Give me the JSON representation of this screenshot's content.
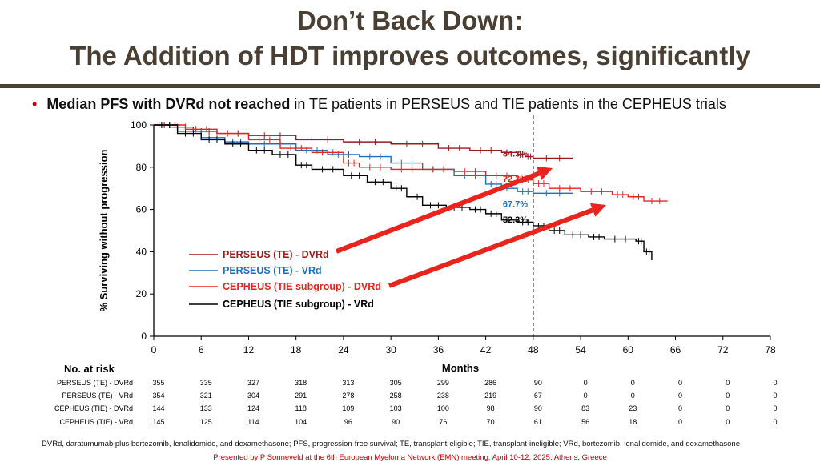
{
  "slide": {
    "title_line1": "Don’t Back Down:",
    "title_line2": "The Addition of HDT improves outcomes, significantly",
    "bullet_bold": "Median PFS with DVRd not reached",
    "bullet_rest": " in TE patients in PERSEUS and TIE patients in the CEPHEUS trials",
    "footnote": "DVRd, daratumumab plus bortezomib, lenalidomide, and dexamethasone; PFS, progression-free survival; TE, transplant-eligible; TIE, transplant-ineligible; VRd, bortezomib, lenalidomide, and dexamethasone",
    "credit": "Presented by P Sonneveld at the 6th European Myeloma Network (EMN) meeting; April 10-12, 2025; Athens, Greece"
  },
  "chart_data": {
    "type": "line",
    "ylabel": "% Surviving without progression",
    "xlabel": "Months",
    "xlim": [
      0,
      78
    ],
    "ylim": [
      0,
      100
    ],
    "x_ticks": [
      0,
      6,
      12,
      18,
      24,
      30,
      36,
      42,
      48,
      54,
      60,
      66,
      72,
      78
    ],
    "y_ticks": [
      0,
      20,
      40,
      60,
      80,
      100
    ],
    "reference_line_x": 48,
    "series": [
      {
        "name": "PERSEUS (TE) - DVRd",
        "color": "#9b1b1b",
        "points": [
          [
            0,
            100
          ],
          [
            2,
            99
          ],
          [
            5,
            97
          ],
          [
            8,
            96
          ],
          [
            12,
            95
          ],
          [
            18,
            93
          ],
          [
            24,
            92
          ],
          [
            30,
            91
          ],
          [
            36,
            89
          ],
          [
            40,
            88
          ],
          [
            44,
            87
          ],
          [
            46,
            86
          ],
          [
            47,
            85
          ],
          [
            48,
            84.3
          ],
          [
            53,
            84.3
          ]
        ],
        "label": "84.3%",
        "label_y": 84.3
      },
      {
        "name": "PERSEUS (TE) - VRd",
        "color": "#1f6fbf",
        "points": [
          [
            0,
            100
          ],
          [
            3,
            97
          ],
          [
            6,
            94
          ],
          [
            9,
            92
          ],
          [
            12,
            91
          ],
          [
            18,
            88
          ],
          [
            22,
            86
          ],
          [
            26,
            85
          ],
          [
            30,
            82
          ],
          [
            34,
            79
          ],
          [
            38,
            76
          ],
          [
            42,
            72
          ],
          [
            44,
            70
          ],
          [
            46,
            68.5
          ],
          [
            48,
            67.7
          ],
          [
            53,
            67.7
          ]
        ],
        "label": "67.7%",
        "label_y": 67.7
      },
      {
        "name": "CEPHEUS (TIE subgroup) - DVRd",
        "color": "#e8241d",
        "points": [
          [
            0,
            100
          ],
          [
            4,
            98
          ],
          [
            8,
            96
          ],
          [
            12,
            93
          ],
          [
            16,
            89
          ],
          [
            20,
            87
          ],
          [
            24,
            82
          ],
          [
            26,
            80
          ],
          [
            30,
            79
          ],
          [
            34,
            79
          ],
          [
            38,
            78
          ],
          [
            42,
            76
          ],
          [
            46,
            74
          ],
          [
            48,
            72.3
          ],
          [
            50,
            70
          ],
          [
            54,
            68.5
          ],
          [
            58,
            67
          ],
          [
            60,
            66
          ],
          [
            62,
            64
          ],
          [
            65,
            64
          ]
        ],
        "label": "72.3%",
        "label_y": 72.3
      },
      {
        "name": "CEPHEUS (TIE subgroup) - VRd",
        "color": "#000000",
        "points": [
          [
            0,
            100
          ],
          [
            3,
            96
          ],
          [
            6,
            93
          ],
          [
            9,
            91
          ],
          [
            12,
            88
          ],
          [
            15,
            86
          ],
          [
            18,
            81
          ],
          [
            20,
            79
          ],
          [
            24,
            76
          ],
          [
            27,
            73
          ],
          [
            30,
            70
          ],
          [
            32,
            66
          ],
          [
            34,
            62
          ],
          [
            37,
            61
          ],
          [
            40,
            60
          ],
          [
            42,
            58
          ],
          [
            44,
            55
          ],
          [
            46,
            54
          ],
          [
            48,
            52.3
          ],
          [
            50,
            50
          ],
          [
            52,
            48
          ],
          [
            55,
            47
          ],
          [
            57,
            46
          ],
          [
            61,
            45
          ],
          [
            62,
            40
          ],
          [
            63,
            36
          ]
        ],
        "label": "52.3%",
        "label_y": 52.3
      }
    ],
    "at_risk": {
      "header": "No. at risk",
      "rows": [
        {
          "name": "PERSEUS (TE) - DVRd",
          "values": [
            355,
            335,
            327,
            318,
            313,
            305,
            299,
            286,
            90,
            0,
            0,
            0,
            0,
            0
          ]
        },
        {
          "name": "PERSEUS (TE) - VRd",
          "values": [
            354,
            321,
            304,
            291,
            278,
            258,
            238,
            219,
            67,
            0,
            0,
            0,
            0,
            0
          ]
        },
        {
          "name": "CEPHEUS (TIE) - DVRd",
          "values": [
            144,
            133,
            124,
            118,
            109,
            103,
            100,
            98,
            90,
            83,
            23,
            0,
            0,
            0
          ]
        },
        {
          "name": "CEPHEUS (TIE) - VRd",
          "values": [
            145,
            125,
            114,
            104,
            96,
            90,
            76,
            70,
            61,
            56,
            18,
            0,
            0,
            0
          ]
        }
      ]
    },
    "arrow_color": "#e8241d"
  }
}
